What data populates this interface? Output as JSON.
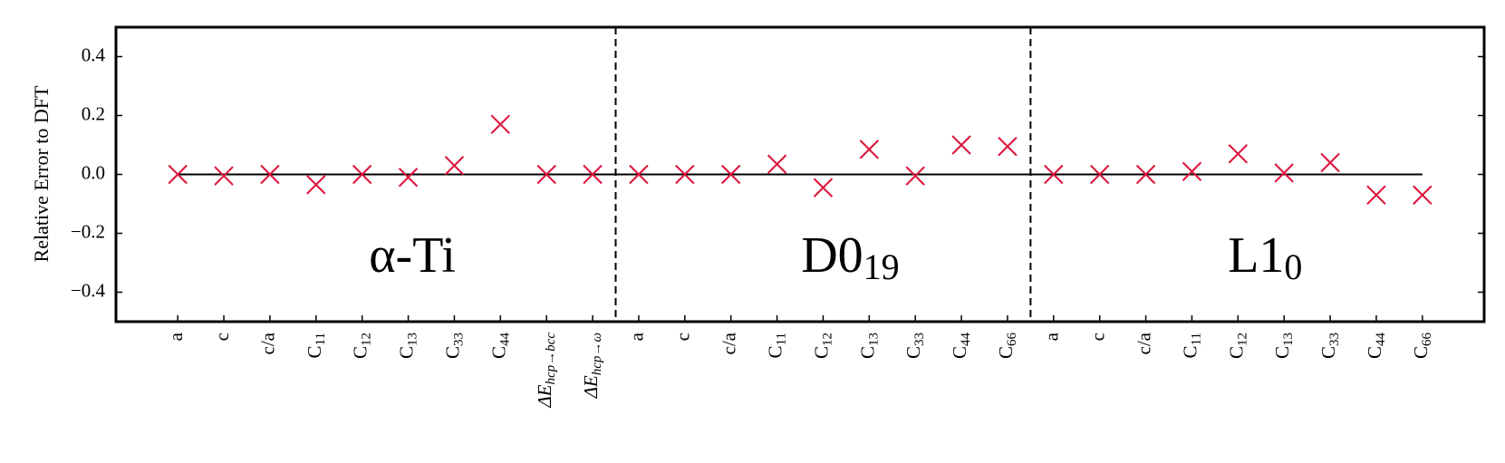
{
  "chart_data": {
    "type": "scatter",
    "marker": "x",
    "color": "#dc143c",
    "ylabel": "Relative Error to DFT",
    "ylim": [
      -0.5,
      0.5
    ],
    "yticks": [
      {
        "value": -0.4,
        "label": "−0.4"
      },
      {
        "value": -0.2,
        "label": "−0.2"
      },
      {
        "value": 0,
        "label": "0.0"
      },
      0.2,
      0.4
    ],
    "reference_line": 0,
    "annotation_y": -0.29,
    "groups": [
      {
        "label": {
          "text": "α-Ti"
        },
        "categories": [
          "a",
          "c",
          "c/a",
          "C11",
          "C12",
          "C13",
          "C33",
          "C44",
          "ΔEhcp→bcc",
          "ΔEhcp→ω"
        ],
        "values": [
          0.0,
          -0.005,
          0.0,
          -0.035,
          0.0,
          -0.01,
          0.03,
          0.17,
          0.0,
          0.0
        ]
      },
      {
        "label": {
          "text": "D0",
          "subscript": "19"
        },
        "categories": [
          "a",
          "c",
          "c/a",
          "C11",
          "C12",
          "C13",
          "C33",
          "C44",
          "C66"
        ],
        "values": [
          0.0,
          0.0,
          0.0,
          0.035,
          -0.045,
          0.085,
          -0.005,
          0.1,
          0.095
        ]
      },
      {
        "label": {
          "text": "L1",
          "subscript": "0"
        },
        "categories": [
          "a",
          "c",
          "c/a",
          "C11",
          "C12",
          "C13",
          "C33",
          "C44",
          "C66"
        ],
        "values": [
          0.0,
          0.0,
          0.0,
          0.01,
          0.07,
          0.005,
          0.04,
          -0.07,
          -0.07
        ]
      }
    ]
  }
}
